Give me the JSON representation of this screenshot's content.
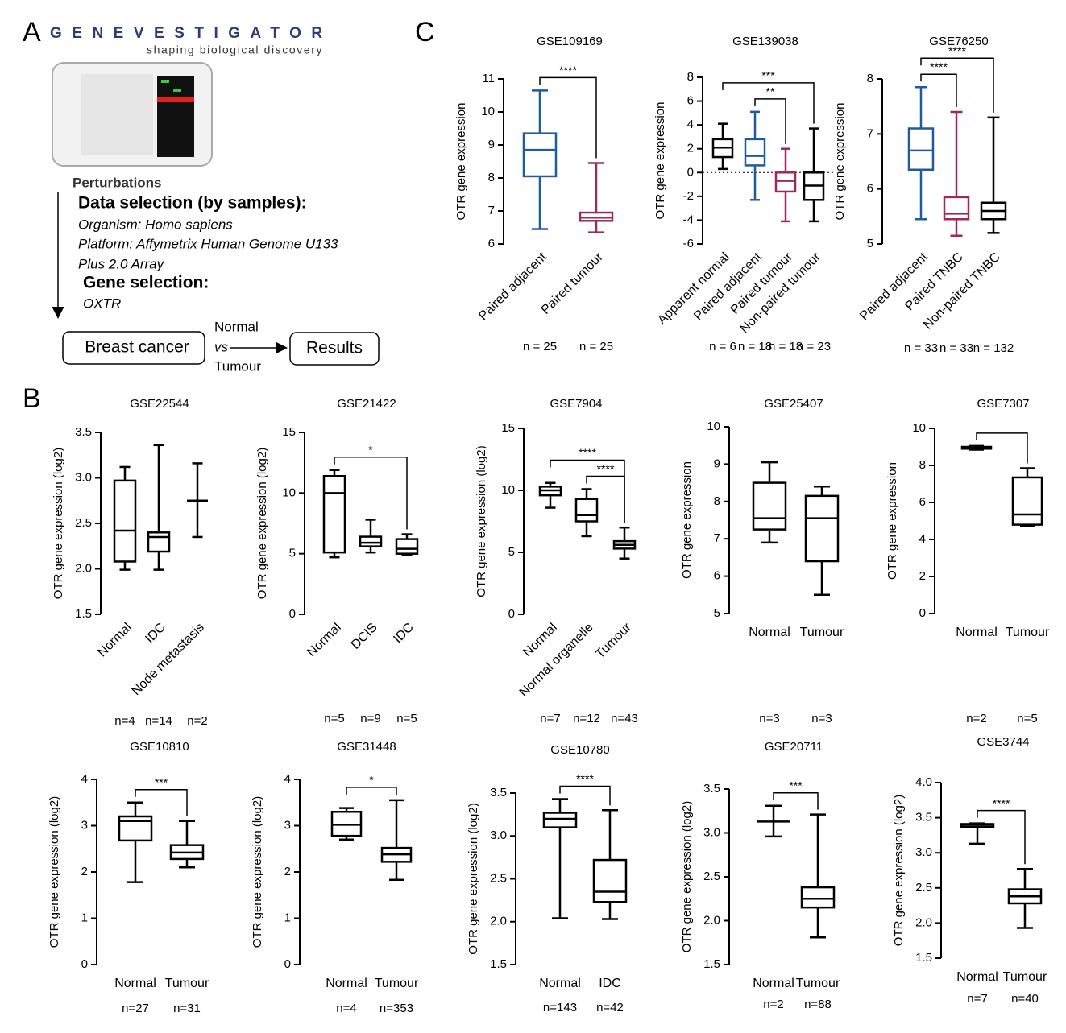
{
  "panel_labels": [
    "A",
    "B",
    "C"
  ],
  "panel_a": {
    "logo": "GENEVESTIGATOR",
    "tagline": "shaping biological discovery",
    "thumbnail_label": "Perturbations",
    "data_selection": "Data selection (by samples):",
    "data_lines": [
      "Organism: Homo sapiens",
      "Platform: Affymetrix Human Genome U133",
      "Plus 2.0 Array"
    ],
    "gene_selection": "Gene selection:",
    "gene": "OXTR",
    "flow": {
      "source": "Breast cancer",
      "top": "Normal",
      "middle": "vs",
      "bottom": "Tumour",
      "target": "Results"
    }
  },
  "chart_data": [
    {
      "type": "box",
      "title": "GSE109169",
      "y_label": "OTR gene expression",
      "categories": [
        "Paired adjacent",
        "Paired tumour"
      ],
      "colors": [
        "#1f5c9e",
        "#9c2a5c"
      ],
      "boxes": [
        {
          "min": 6.45,
          "q1": 8.05,
          "median": 8.85,
          "q3": 9.35,
          "max": 10.65
        },
        {
          "min": 6.35,
          "q1": 6.7,
          "median": 6.8,
          "q3": 6.95,
          "max": 8.45
        }
      ],
      "n_labels": [
        "n = 25",
        "n = 25"
      ],
      "ylim": [
        6,
        11
      ],
      "yticks": [
        6,
        7,
        8,
        9,
        10,
        11
      ],
      "zero_line": false,
      "brackets": [
        {
          "pair": [
            0,
            1
          ],
          "label": "****"
        }
      ]
    },
    {
      "type": "box",
      "title": "GSE139038",
      "y_label": "OTR gene expression",
      "categories": [
        "Apparent normal",
        "Paired adjacent",
        "Paired tumour",
        "Non-paired tumour"
      ],
      "colors": [
        "#000000",
        "#1f5c9e",
        "#9c2a5c",
        "#000000"
      ],
      "boxes": [
        {
          "min": 0.3,
          "q1": 1.3,
          "median": 2.1,
          "q3": 2.8,
          "max": 4.1
        },
        {
          "min": -2.3,
          "q1": 0.6,
          "median": 1.4,
          "q3": 2.8,
          "max": 5.1
        },
        {
          "min": -4.1,
          "q1": -1.6,
          "median": -0.7,
          "q3": 0,
          "max": 2.0
        },
        {
          "min": -4.1,
          "q1": -2.3,
          "median": -1.1,
          "q3": 0,
          "max": 3.7
        }
      ],
      "n_labels": [
        "n = 6",
        "n = 18",
        "n = 18",
        "n = 23"
      ],
      "ylim": [
        -6,
        8
      ],
      "yticks": [
        -6,
        -4,
        -2,
        0,
        2,
        4,
        6,
        8
      ],
      "zero_line": true,
      "brackets": [
        {
          "pair": [
            1,
            2
          ],
          "label": "**"
        },
        {
          "pair": [
            0,
            3
          ],
          "label": "***"
        }
      ]
    },
    {
      "type": "box",
      "title": "GSE76250",
      "y_label": "OTR gene expression",
      "categories": [
        "Paired adjacent",
        "Paired TNBC",
        "Non-paired TNBC"
      ],
      "colors": [
        "#1f5c9e",
        "#9c2a5c",
        "#000000"
      ],
      "boxes": [
        {
          "min": 5.45,
          "q1": 6.35,
          "median": 6.7,
          "q3": 7.1,
          "max": 7.85
        },
        {
          "min": 5.15,
          "q1": 5.45,
          "median": 5.55,
          "q3": 5.85,
          "max": 7.4
        },
        {
          "min": 5.2,
          "q1": 5.45,
          "median": 5.6,
          "q3": 5.75,
          "max": 7.3
        }
      ],
      "n_labels": [
        "n = 33",
        "n = 33",
        "n = 132"
      ],
      "ylim": [
        5,
        8
      ],
      "yticks": [
        5,
        6,
        7,
        8
      ],
      "zero_line": false,
      "brackets": [
        {
          "pair": [
            0,
            1
          ],
          "label": "****"
        },
        {
          "pair": [
            0,
            2
          ],
          "label": "****"
        }
      ]
    },
    {
      "type": "box",
      "title": "GSE22544",
      "y_label": "OTR gene expression  (log2)",
      "categories": [
        "Normal",
        "IDC",
        "Node metastasis"
      ],
      "colors": [
        "#000000",
        "#000000",
        "#000000"
      ],
      "boxes": [
        {
          "min": 1.99,
          "q1": 2.08,
          "median": 2.42,
          "q3": 2.97,
          "max": 3.12
        },
        {
          "min": 1.99,
          "q1": 2.19,
          "median": 2.35,
          "q3": 2.4,
          "max": 3.36
        },
        {
          "min": 2.35,
          "q1": 2.75,
          "median": 2.75,
          "q3": 2.75,
          "max": 3.16
        }
      ],
      "n_labels": [
        "n=4",
        "n=14",
        "n=2"
      ],
      "ylim": [
        1.5,
        3.5
      ],
      "yticks": [
        1.5,
        {
          "value": 2,
          "label": "2.0"
        },
        2.5,
        {
          "value": 3,
          "label": "3.0"
        },
        3.5
      ],
      "zero_line": false,
      "brackets": []
    },
    {
      "type": "box",
      "title": "GSE21422",
      "y_label": "OTR gene expression  (log2)",
      "categories": [
        "Normal",
        "DCIS",
        "IDC"
      ],
      "colors": [
        "#000000",
        "#000000",
        "#000000"
      ],
      "boxes": [
        {
          "min": 4.7,
          "q1": 5.1,
          "median": 10,
          "q3": 11.4,
          "max": 11.9
        },
        {
          "min": 5.1,
          "q1": 5.6,
          "median": 5.9,
          "q3": 6.4,
          "max": 7.8
        },
        {
          "min": 4.9,
          "q1": 5.0,
          "median": 5.4,
          "q3": 6.2,
          "max": 6.6
        }
      ],
      "n_labels": [
        "n=5",
        "n=9",
        "n=5"
      ],
      "ylim": [
        0,
        15
      ],
      "yticks": [
        0,
        5,
        10,
        15
      ],
      "zero_line": false,
      "brackets": [
        {
          "pair": [
            0,
            2
          ],
          "label": "*"
        }
      ]
    },
    {
      "type": "box",
      "title": "GSE7904",
      "y_label": "OTR gene expression  (log2)",
      "categories": [
        "Normal",
        "Normal organelle",
        "Tumour"
      ],
      "colors": [
        "#000000",
        "#000000",
        "#000000"
      ],
      "boxes": [
        {
          "min": 8.6,
          "q1": 9.6,
          "median": 10,
          "q3": 10.3,
          "max": 10.6
        },
        {
          "min": 6.3,
          "q1": 7.5,
          "median": 8,
          "q3": 9.3,
          "max": 10.1
        },
        {
          "min": 4.5,
          "q1": 5.3,
          "median": 5.6,
          "q3": 5.9,
          "max": 7.0
        }
      ],
      "n_labels": [
        "n=7",
        "n=12",
        "n=43"
      ],
      "ylim": [
        0,
        15
      ],
      "yticks": [
        0,
        5,
        10,
        15
      ],
      "zero_line": false,
      "brackets": [
        {
          "pair": [
            1,
            2
          ],
          "label": "****"
        },
        {
          "pair": [
            0,
            2
          ],
          "label": "****"
        }
      ]
    },
    {
      "type": "box",
      "title": "GSE25407",
      "y_label": "OTR gene expression",
      "categories": [
        "Normal",
        "Tumour"
      ],
      "colors": [
        "#000000",
        "#000000"
      ],
      "boxes": [
        {
          "min": 6.9,
          "q1": 7.25,
          "median": 7.55,
          "q3": 8.5,
          "max": 9.05
        },
        {
          "min": 5.5,
          "q1": 6.4,
          "median": 7.55,
          "q3": 8.15,
          "max": 8.4
        }
      ],
      "n_labels": [
        "n=3",
        "n=3"
      ],
      "ylim": [
        5,
        10
      ],
      "yticks": [
        5,
        6,
        7,
        8,
        9,
        10
      ],
      "zero_line": false,
      "brackets": []
    },
    {
      "type": "box",
      "title": "GSE7307",
      "y_label": "OTR gene expression",
      "categories": [
        "Normal",
        "Tumour"
      ],
      "colors": [
        "#000000",
        "#000000"
      ],
      "boxes": [
        {
          "min": 8.85,
          "q1": 8.9,
          "median": 8.95,
          "q3": 9.0,
          "max": 9.05
        },
        {
          "min": 4.75,
          "q1": 4.8,
          "median": 5.35,
          "q3": 7.35,
          "max": 7.85
        }
      ],
      "n_labels": [
        "n=2",
        "n=5"
      ],
      "ylim": [
        0,
        10
      ],
      "yticks": [
        0,
        2,
        4,
        6,
        8,
        10
      ],
      "zero_line": false,
      "brackets": [
        {
          "pair": [
            0,
            1
          ]
        }
      ]
    },
    {
      "type": "box",
      "title": "GSE10810",
      "y_label": "OTR gene expression  (log2)",
      "categories": [
        "Normal",
        "Tumour"
      ],
      "colors": [
        "#000000",
        "#000000"
      ],
      "boxes": [
        {
          "min": 1.78,
          "q1": 2.68,
          "median": 3.1,
          "q3": 3.2,
          "max": 3.5
        },
        {
          "min": 2.1,
          "q1": 2.28,
          "median": 2.42,
          "q3": 2.58,
          "max": 3.1
        }
      ],
      "n_labels": [
        "n=27",
        "n=31"
      ],
      "ylim": [
        0,
        4
      ],
      "yticks": [
        0,
        1,
        2,
        3,
        4
      ],
      "zero_line": false,
      "brackets": [
        {
          "pair": [
            0,
            1
          ],
          "label": "***"
        }
      ]
    },
    {
      "type": "box",
      "title": "GSE31448",
      "y_label": "OTR gene expression  (log2)",
      "categories": [
        "Normal",
        "Tumour"
      ],
      "colors": [
        "#000000",
        "#000000"
      ],
      "boxes": [
        {
          "min": 2.7,
          "q1": 2.78,
          "median": 3.02,
          "q3": 3.3,
          "max": 3.38
        },
        {
          "min": 1.83,
          "q1": 2.22,
          "median": 2.38,
          "q3": 2.52,
          "max": 3.55
        }
      ],
      "n_labels": [
        "n=4",
        "n=353"
      ],
      "ylim": [
        0,
        4
      ],
      "yticks": [
        0,
        1,
        2,
        3,
        4
      ],
      "zero_line": false,
      "brackets": [
        {
          "pair": [
            0,
            1
          ],
          "label": "*"
        }
      ]
    },
    {
      "type": "box",
      "title": "GSE10780",
      "y_label": "OTR gene expression  (log2)",
      "categories": [
        "Normal",
        "IDC"
      ],
      "colors": [
        "#000000",
        "#000000"
      ],
      "boxes": [
        {
          "min": 2.04,
          "q1": 3.1,
          "median": 3.2,
          "q3": 3.27,
          "max": 3.43
        },
        {
          "min": 2.03,
          "q1": 2.23,
          "median": 2.35,
          "q3": 2.72,
          "max": 3.3
        }
      ],
      "n_labels": [
        "n=143",
        "n=42"
      ],
      "ylim": [
        1.5,
        3.5
      ],
      "yticks": [
        1.5,
        {
          "value": 2,
          "label": "2.0"
        },
        2.5,
        {
          "value": 3,
          "label": "3.0"
        },
        3.5
      ],
      "zero_line": false,
      "brackets": [
        {
          "pair": [
            0,
            1
          ],
          "label": "****"
        }
      ]
    },
    {
      "type": "box",
      "title": "GSE20711",
      "y_label": "OTR gene expression  (log2)",
      "categories": [
        "Normal",
        "Tumour"
      ],
      "colors": [
        "#000000",
        "#000000"
      ],
      "boxes": [
        {
          "min": 2.96,
          "q1": 3.13,
          "median": 3.13,
          "q3": 3.13,
          "max": 3.31
        },
        {
          "min": 1.81,
          "q1": 2.15,
          "median": 2.25,
          "q3": 2.38,
          "max": 3.21
        }
      ],
      "n_labels": [
        "n=2",
        "n=88"
      ],
      "ylim": [
        1.5,
        3.5
      ],
      "yticks": [
        1.5,
        {
          "value": 2,
          "label": "2.0"
        },
        2.5,
        {
          "value": 3,
          "label": "3.0"
        },
        3.5
      ],
      "zero_line": false,
      "brackets": [
        {
          "pair": [
            0,
            1
          ],
          "label": "***"
        }
      ]
    },
    {
      "type": "box",
      "title": "GSE3744",
      "y_label": "OTR gene expression  (log2)",
      "categories": [
        "Normal",
        "Tumour"
      ],
      "colors": [
        "#000000",
        "#000000"
      ],
      "boxes": [
        {
          "min": 3.13,
          "q1": 3.37,
          "median": 3.4,
          "q3": 3.41,
          "max": 3.42
        },
        {
          "min": 1.93,
          "q1": 2.28,
          "median": 2.38,
          "q3": 2.48,
          "max": 2.77
        }
      ],
      "n_labels": [
        "n=7",
        "n=40"
      ],
      "ylim": [
        1.5,
        4
      ],
      "yticks": [
        1.5,
        {
          "value": 2,
          "label": "2.0"
        },
        2.5,
        {
          "value": 3,
          "label": "3.0"
        },
        3.5,
        {
          "value": 4,
          "label": "4.0"
        }
      ],
      "zero_line": false,
      "brackets": [
        {
          "pair": [
            0,
            1
          ],
          "label": "****"
        }
      ]
    }
  ]
}
